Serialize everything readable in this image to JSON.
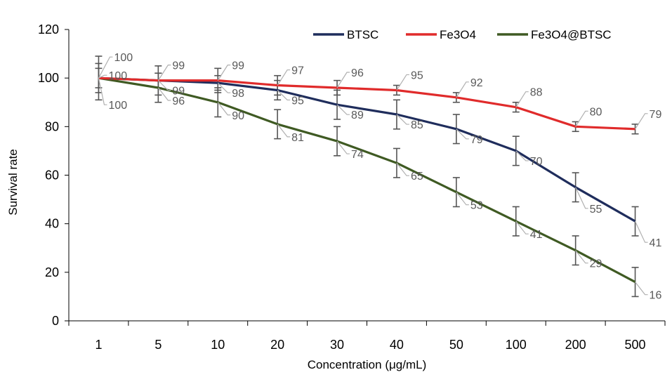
{
  "chart_data": {
    "type": "line",
    "title": "",
    "xlabel": "Concentration (μg/mL)",
    "ylabel": "Survival rate",
    "categories": [
      "1",
      "5",
      "10",
      "20",
      "30",
      "40",
      "50",
      "100",
      "200",
      "500"
    ],
    "ylim": [
      0,
      120
    ],
    "yticks": [
      0,
      20,
      40,
      60,
      80,
      100,
      120
    ],
    "grid": false,
    "legend_position": "top-right",
    "series": [
      {
        "name": "BTSC",
        "color": "#1f2d5c",
        "values": [
          100,
          99,
          98,
          95,
          89,
          85,
          79,
          70,
          55,
          41
        ],
        "error": [
          4,
          3,
          3,
          4,
          6,
          6,
          6,
          6,
          6,
          6
        ]
      },
      {
        "name": "Fe3O4",
        "color": "#e02b2b",
        "values": [
          100,
          99,
          99,
          97,
          96,
          95,
          92,
          88,
          80,
          79
        ],
        "error": [
          9,
          6,
          5,
          4,
          3,
          2,
          2,
          2,
          2,
          2
        ]
      },
      {
        "name": "Fe3O4@BTSC",
        "color": "#3f5a23",
        "values": [
          100,
          96,
          90,
          81,
          74,
          65,
          53,
          41,
          29,
          16
        ],
        "error": [
          6,
          6,
          6,
          6,
          6,
          6,
          6,
          6,
          6,
          6
        ]
      }
    ],
    "errorbar_color": "#555555",
    "label_color": "#595959"
  }
}
